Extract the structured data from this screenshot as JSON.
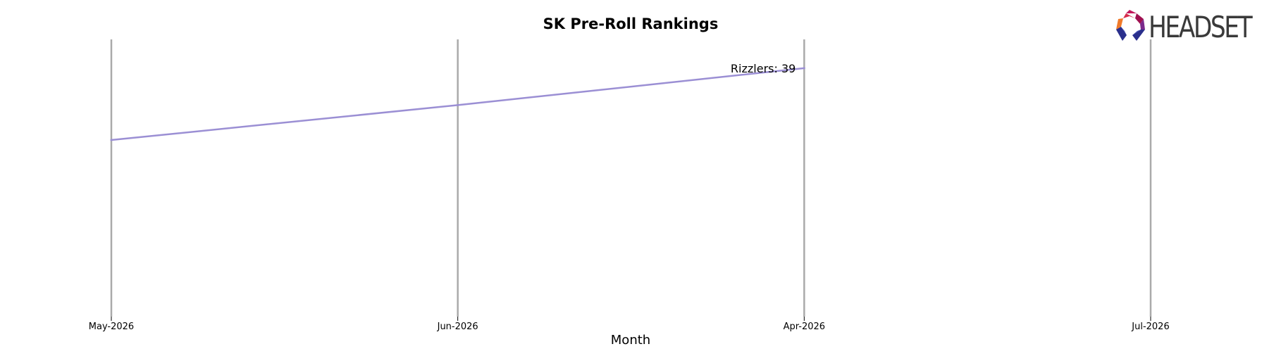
{
  "logo": {
    "text": "HEADSET",
    "icon": "headset-logo-icon"
  },
  "chart_data": {
    "type": "line",
    "title": "SK Pre-Roll Rankings",
    "xlabel": "Month",
    "ylabel": "",
    "categories": [
      "May-2026",
      "Jun-2026",
      "Apr-2026",
      "Jul-2026"
    ],
    "series": [
      {
        "name": "Rizzlers",
        "values": [
          74,
          57,
          39,
          null
        ],
        "color": "#9b8fd4"
      }
    ],
    "annotations": [
      {
        "text": "Rizzlers: 39",
        "category": "Apr-2026",
        "value": 39
      }
    ],
    "ylim": [
      160,
      25
    ],
    "y_inverted": true,
    "yaxis_visible": false,
    "grid": "vertical lines at each month",
    "grid_color": "#aaaaaa"
  }
}
